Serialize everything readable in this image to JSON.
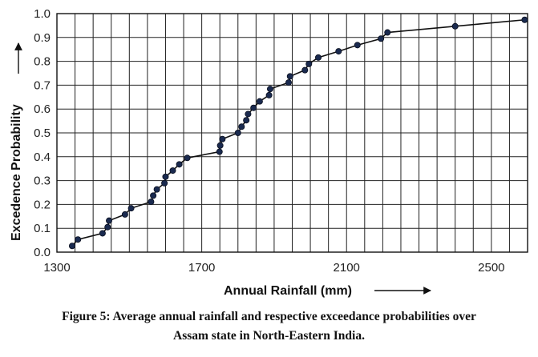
{
  "chart_data": {
    "type": "line",
    "xlabel": "Annual Rainfall (mm)",
    "ylabel": "Excedence Probability",
    "xlim": [
      1300,
      2600
    ],
    "ylim": [
      0,
      1
    ],
    "x_ticks": [
      1300,
      1700,
      2100,
      2500
    ],
    "y_ticks": [
      "0.0",
      "0.1",
      "0.2",
      "0.3",
      "0.4",
      "0.5",
      "0.6",
      "0.7",
      "0.8",
      "0.9",
      "1.0"
    ],
    "x_grid_step": 50,
    "y_grid_step": 0.1,
    "grid": true,
    "legend": "none",
    "series": [
      {
        "color": "#1a2a4f",
        "points": [
          [
            1342,
            0.026
          ],
          [
            1358,
            0.053
          ],
          [
            1426,
            0.079
          ],
          [
            1440,
            0.105
          ],
          [
            1444,
            0.132
          ],
          [
            1488,
            0.158
          ],
          [
            1505,
            0.184
          ],
          [
            1560,
            0.211
          ],
          [
            1566,
            0.237
          ],
          [
            1576,
            0.263
          ],
          [
            1597,
            0.289
          ],
          [
            1600,
            0.316
          ],
          [
            1620,
            0.342
          ],
          [
            1638,
            0.368
          ],
          [
            1660,
            0.395
          ],
          [
            1749,
            0.421
          ],
          [
            1751,
            0.447
          ],
          [
            1757,
            0.474
          ],
          [
            1800,
            0.5
          ],
          [
            1810,
            0.526
          ],
          [
            1823,
            0.553
          ],
          [
            1828,
            0.579
          ],
          [
            1843,
            0.605
          ],
          [
            1860,
            0.632
          ],
          [
            1886,
            0.658
          ],
          [
            1889,
            0.684
          ],
          [
            1940,
            0.711
          ],
          [
            1944,
            0.737
          ],
          [
            1985,
            0.763
          ],
          [
            1996,
            0.789
          ],
          [
            2022,
            0.816
          ],
          [
            2078,
            0.842
          ],
          [
            2130,
            0.868
          ],
          [
            2195,
            0.895
          ],
          [
            2213,
            0.921
          ],
          [
            2400,
            0.947
          ],
          [
            2592,
            0.974
          ]
        ]
      }
    ]
  },
  "caption": {
    "line1": "Figure 5: Average annual rainfall and respective exceedance probabilities over",
    "line2": "Assam state in North-Eastern India."
  }
}
